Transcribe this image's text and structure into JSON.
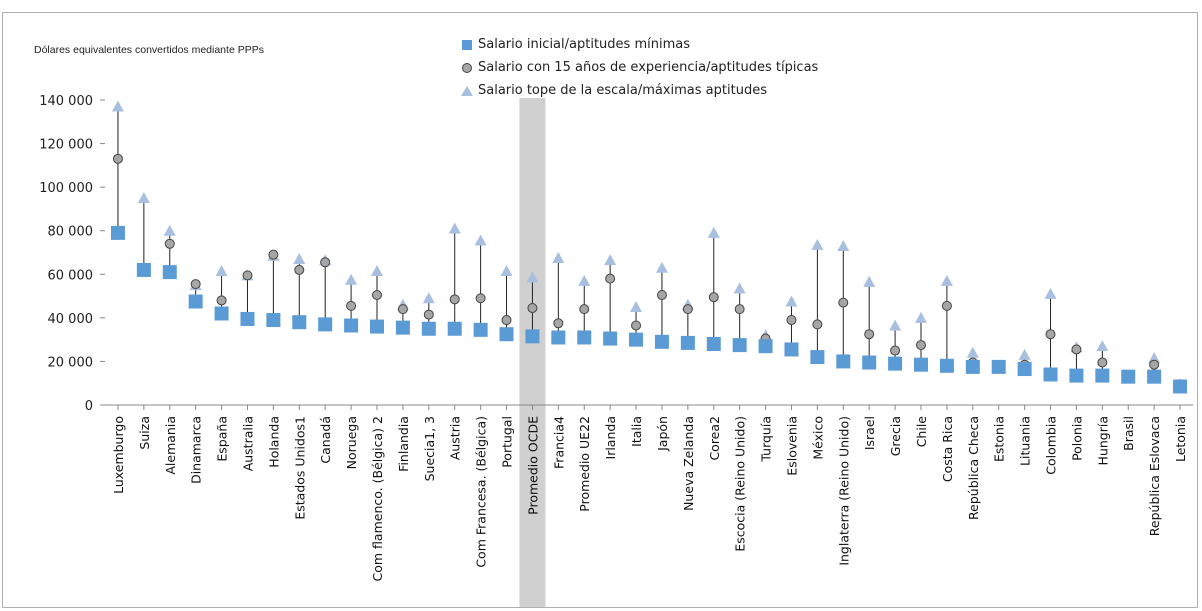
{
  "chart_data": {
    "type": "scatter",
    "subtitle": "Dólares equivalentes  convertidos mediante PPPs",
    "ylim": [
      0,
      140000
    ],
    "y_ticks": [
      "0",
      "20 000",
      "40 000",
      "60 000",
      "80 000",
      "100 000",
      "120 000",
      "140 000"
    ],
    "y_tick_values": [
      0,
      20000,
      40000,
      60000,
      80000,
      100000,
      120000,
      140000
    ],
    "highlight_category": "Promedio OCDE",
    "grid": false,
    "legend_position": "top",
    "colors": {
      "starting": "#5b9bd5",
      "fifteen": "#a6a6a6",
      "top": "#a9bfe0",
      "highlight": "#d0d0d0"
    },
    "categories": [
      "Luxemburgo",
      "Suiza",
      "Alemania",
      "Dinamarca",
      "España",
      "Australia",
      "Holanda",
      "Estados Unidos1",
      "Canadá",
      "Noruega",
      "Com flamenco. (Bélgica) 2",
      "Finlandia",
      "Suecia1, 3",
      "Austria",
      "Com Francesa. (Bélgica)",
      "Portugal",
      "Promedio OCDE",
      "Francia4",
      "Promedio UE22",
      "Irlanda",
      "Italia",
      "Japón",
      "Nueva Zelanda",
      "Corea2",
      "Escocia (Reino Unido)",
      "Turquía",
      "Eslovenia",
      "México",
      "Inglaterra (Reino Unido)",
      "Israel",
      "Grecia",
      "Chile",
      "Costa Rica",
      "República Checa",
      "Estonia",
      "Lituania",
      "Colombia",
      "Polonia",
      "Hungría",
      "Brasil",
      "República Eslovaca",
      "Letonia"
    ],
    "series": [
      {
        "name": "Salario inicial/aptitudes mínimas",
        "marker": "square",
        "values": [
          79000,
          62000,
          61000,
          47500,
          42000,
          39500,
          39000,
          38000,
          37000,
          36500,
          36000,
          35500,
          35000,
          35000,
          34500,
          32500,
          31500,
          31000,
          31000,
          30500,
          30000,
          29000,
          28500,
          28000,
          27500,
          27000,
          25500,
          22000,
          20000,
          19500,
          19000,
          18500,
          18000,
          17500,
          17500,
          16500,
          14000,
          13500,
          13500,
          13000,
          13000,
          8500
        ]
      },
      {
        "name": "Salario con 15 años de experiencia/aptitudes típicas",
        "marker": "circle",
        "values": [
          113000,
          null,
          74000,
          55500,
          48000,
          59500,
          69000,
          62000,
          65500,
          45500,
          50500,
          44000,
          41500,
          48500,
          49000,
          39000,
          44500,
          37500,
          44000,
          58000,
          36500,
          50500,
          44000,
          49500,
          44000,
          30500,
          39000,
          37000,
          47000,
          32500,
          25000,
          27500,
          45500,
          19500,
          null,
          18500,
          32500,
          25500,
          19500,
          null,
          18500,
          8500
        ]
      },
      {
        "name": "Salario tope de la escala/máximas aptitudes",
        "marker": "triangle",
        "values": [
          137000,
          95000,
          80000,
          55000,
          61500,
          59500,
          68500,
          67000,
          66500,
          57500,
          61500,
          46000,
          49000,
          81000,
          75500,
          61500,
          58500,
          67500,
          57000,
          66500,
          45000,
          63000,
          46000,
          79000,
          53500,
          32000,
          47500,
          73500,
          73000,
          56500,
          36500,
          40000,
          57000,
          24000,
          null,
          23000,
          51000,
          26500,
          27000,
          null,
          21500,
          9500
        ]
      }
    ]
  }
}
